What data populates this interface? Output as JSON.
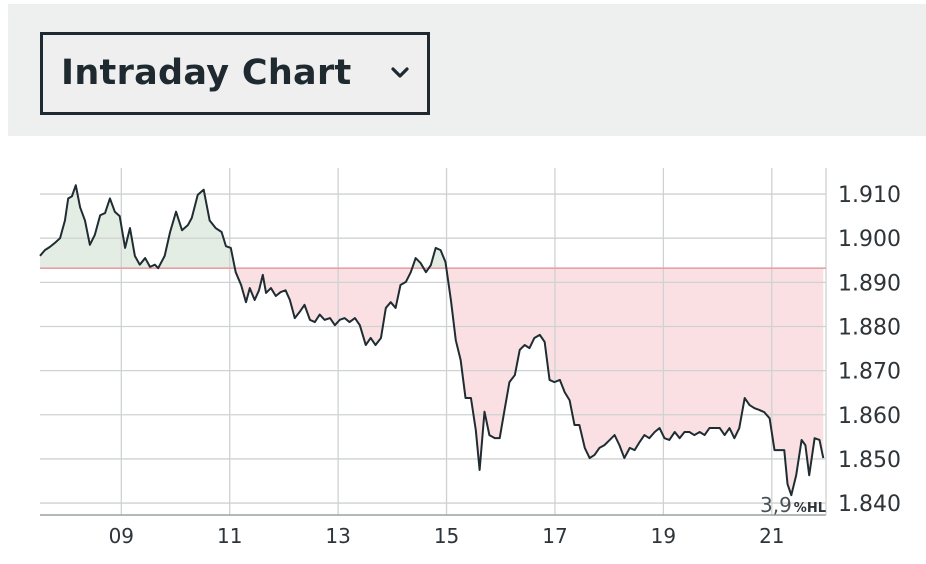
{
  "header": {
    "title": "Intraday Chart"
  },
  "chart_data": {
    "type": "line",
    "x": [
      7.5,
      7.59,
      7.68,
      7.78,
      7.87,
      7.96,
      8.02,
      8.09,
      8.16,
      8.24,
      8.33,
      8.42,
      8.51,
      8.61,
      8.7,
      8.79,
      8.88,
      8.97,
      9.07,
      9.16,
      9.25,
      9.34,
      9.44,
      9.53,
      9.62,
      9.68,
      9.8,
      9.9,
      10.01,
      10.12,
      10.23,
      10.3,
      10.41,
      10.52,
      10.63,
      10.74,
      10.85,
      10.93,
      11.02,
      11.11,
      11.21,
      11.3,
      11.37,
      11.46,
      11.54,
      11.61,
      11.67,
      11.76,
      11.85,
      11.94,
      12.03,
      12.11,
      12.2,
      12.29,
      12.38,
      12.48,
      12.57,
      12.66,
      12.75,
      12.85,
      12.94,
      13.03,
      13.12,
      13.21,
      13.31,
      13.4,
      13.51,
      13.6,
      13.69,
      13.79,
      13.88,
      13.97,
      14.06,
      14.15,
      14.25,
      14.34,
      14.43,
      14.52,
      14.62,
      14.71,
      14.8,
      14.89,
      14.98,
      15.08,
      15.17,
      15.26,
      15.35,
      15.45,
      15.54,
      15.61,
      15.7,
      15.79,
      15.89,
      15.98,
      16.07,
      16.16,
      16.26,
      16.35,
      16.44,
      16.53,
      16.62,
      16.72,
      16.81,
      16.9,
      16.99,
      17.09,
      17.18,
      17.27,
      17.36,
      17.45,
      17.55,
      17.64,
      17.73,
      17.82,
      17.91,
      18.01,
      18.1,
      18.19,
      18.28,
      18.38,
      18.47,
      18.56,
      18.65,
      18.74,
      18.84,
      18.93,
      19.02,
      19.11,
      19.21,
      19.3,
      19.39,
      19.48,
      19.57,
      19.67,
      19.76,
      19.85,
      19.94,
      20.04,
      20.13,
      20.22,
      20.31,
      20.4,
      20.5,
      20.59,
      20.68,
      20.77,
      20.86,
      20.96,
      21.05,
      21.14,
      21.23,
      21.29,
      21.36,
      21.45,
      21.55,
      21.62,
      21.69,
      21.79,
      21.88,
      21.95
    ],
    "values": [
      1.896,
      1.8973,
      1.898,
      1.899,
      1.9,
      1.904,
      1.909,
      1.9095,
      1.912,
      1.907,
      1.904,
      1.8985,
      1.9007,
      1.9052,
      1.9057,
      1.909,
      1.906,
      1.905,
      1.8978,
      1.9023,
      1.896,
      1.894,
      1.8955,
      1.8935,
      1.894,
      1.8932,
      1.896,
      1.9014,
      1.906,
      1.9018,
      1.903,
      1.9046,
      1.9098,
      1.911,
      1.904,
      1.9023,
      1.9014,
      1.8982,
      1.8978,
      1.8923,
      1.8894,
      1.8855,
      1.8887,
      1.886,
      1.8882,
      1.8917,
      1.8876,
      1.8887,
      1.8869,
      1.8878,
      1.8882,
      1.886,
      1.8819,
      1.8833,
      1.8849,
      1.8815,
      1.881,
      1.8827,
      1.8815,
      1.8819,
      1.8803,
      1.8815,
      1.8819,
      1.881,
      1.8819,
      1.8803,
      1.8758,
      1.8774,
      1.8758,
      1.8774,
      1.8842,
      1.8855,
      1.8842,
      1.8894,
      1.8901,
      1.8923,
      1.8955,
      1.8944,
      1.8923,
      1.8939,
      1.8978,
      1.8973,
      1.8946,
      1.886,
      1.8769,
      1.8724,
      1.8638,
      1.8638,
      1.8565,
      1.8475,
      1.8607,
      1.8554,
      1.8547,
      1.8547,
      1.8611,
      1.8674,
      1.869,
      1.8747,
      1.8758,
      1.8751,
      1.8774,
      1.8781,
      1.8765,
      1.8679,
      1.8674,
      1.8679,
      1.8651,
      1.8633,
      1.8577,
      1.8577,
      1.8525,
      1.8502,
      1.8509,
      1.8525,
      1.8531,
      1.8543,
      1.8554,
      1.8531,
      1.8502,
      1.8525,
      1.852,
      1.8538,
      1.8554,
      1.8547,
      1.8561,
      1.857,
      1.8547,
      1.8543,
      1.8561,
      1.8547,
      1.8561,
      1.8561,
      1.8554,
      1.8561,
      1.8554,
      1.857,
      1.857,
      1.857,
      1.8554,
      1.857,
      1.8547,
      1.857,
      1.8638,
      1.8622,
      1.8615,
      1.8611,
      1.8606,
      1.8592,
      1.852,
      1.852,
      1.852,
      1.8443,
      1.8418,
      1.8463,
      1.8543,
      1.8531,
      1.8463,
      1.8547,
      1.8543,
      1.8502
    ],
    "color": "#1f2d33",
    "reference_line": 1.8932,
    "reference_color": "#e8a0a6",
    "fill_above": "#e4ede3",
    "fill_below": "#fae0e2",
    "xlim": [
      7.5,
      22
    ],
    "ylim": [
      1.8373,
      1.9159
    ],
    "xticks": [
      {
        "value": 9,
        "label": "09"
      },
      {
        "value": 11,
        "label": "11"
      },
      {
        "value": 13,
        "label": "13"
      },
      {
        "value": 15,
        "label": "15"
      },
      {
        "value": 17,
        "label": "17"
      },
      {
        "value": 19,
        "label": "19"
      },
      {
        "value": 21,
        "label": "21"
      }
    ],
    "yticks": [
      {
        "value": 1.84,
        "label": "1.840"
      },
      {
        "value": 1.85,
        "label": "1.850"
      },
      {
        "value": 1.86,
        "label": "1.860"
      },
      {
        "value": 1.87,
        "label": "1.870"
      },
      {
        "value": 1.88,
        "label": "1.880"
      },
      {
        "value": 1.89,
        "label": "1.890"
      },
      {
        "value": 1.9,
        "label": "1.900"
      },
      {
        "value": 1.91,
        "label": "1.910"
      }
    ],
    "grid": true,
    "annotation": {
      "value": "3,9",
      "unit": "%HL"
    }
  }
}
